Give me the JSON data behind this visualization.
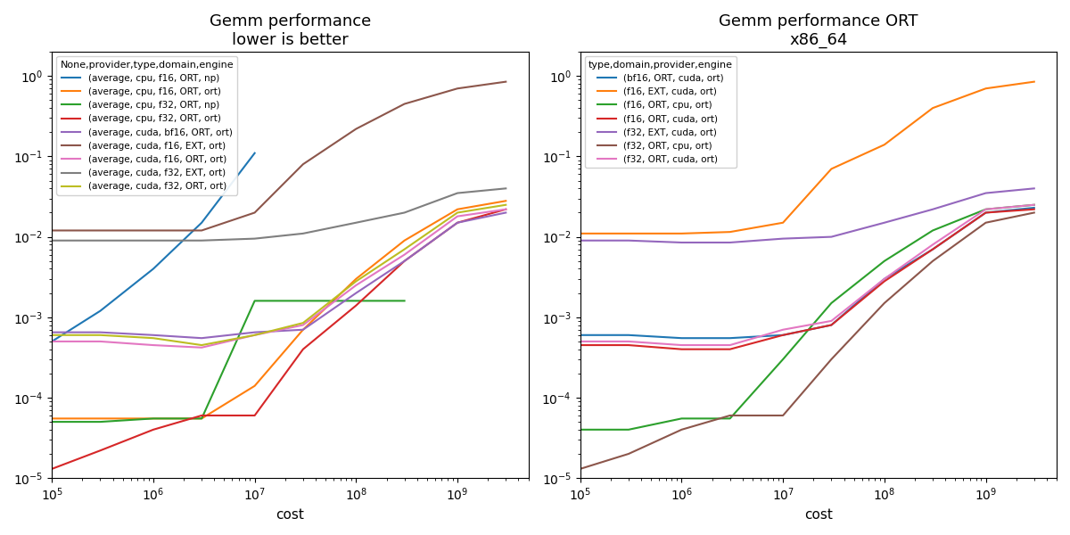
{
  "left_title": "Gemm performance\nlower is better",
  "right_title": "Gemm performance ORT\nx86_64",
  "xlabel": "cost",
  "left_legend_title": "None,provider,type,domain,engine",
  "right_legend_title": "type,domain,provider,engine",
  "left_series": [
    {
      "label": "(average, cpu, f16, ORT, np)",
      "color": "#1f77b4",
      "x": [
        100000.0,
        300000.0,
        1000000.0,
        3000000.0,
        10000000.0
      ],
      "y": [
        0.0005,
        0.0012,
        0.004,
        0.015,
        0.11
      ]
    },
    {
      "label": "(average, cpu, f16, ORT, ort)",
      "color": "#ff7f0e",
      "x": [
        100000.0,
        300000.0,
        1000000.0,
        3000000.0,
        10000000.0,
        30000000.0,
        100000000.0,
        300000000.0,
        1000000000.0,
        3000000000.0
      ],
      "y": [
        5.5e-05,
        5.5e-05,
        5.5e-05,
        5.5e-05,
        0.00014,
        0.0007,
        0.003,
        0.009,
        0.022,
        0.028
      ]
    },
    {
      "label": "(average, cpu, f32, ORT, np)",
      "color": "#2ca02c",
      "x": [
        100000.0,
        300000.0,
        1000000.0,
        3000000.0,
        10000000.0,
        30000000.0,
        100000000.0,
        300000000.0
      ],
      "y": [
        5e-05,
        5e-05,
        5.5e-05,
        5.5e-05,
        0.0016,
        0.0016,
        0.0016,
        0.0016
      ]
    },
    {
      "label": "(average, cpu, f32, ORT, ort)",
      "color": "#d62728",
      "x": [
        100000.0,
        300000.0,
        1000000.0,
        3000000.0,
        10000000.0,
        30000000.0,
        100000000.0,
        300000000.0,
        1000000000.0,
        3000000000.0
      ],
      "y": [
        1.3e-05,
        2.2e-05,
        4e-05,
        6e-05,
        6e-05,
        0.0004,
        0.0014,
        0.005,
        0.015,
        0.022
      ]
    },
    {
      "label": "(average, cuda, bf16, ORT, ort)",
      "color": "#9467bd",
      "x": [
        100000.0,
        300000.0,
        1000000.0,
        3000000.0,
        10000000.0,
        30000000.0,
        100000000.0,
        300000000.0,
        1000000000.0,
        3000000000.0
      ],
      "y": [
        0.00065,
        0.00065,
        0.0006,
        0.00055,
        0.00065,
        0.0007,
        0.002,
        0.005,
        0.015,
        0.02
      ]
    },
    {
      "label": "(average, cuda, f16, EXT, ort)",
      "color": "#8c564b",
      "x": [
        100000.0,
        300000.0,
        1000000.0,
        3000000.0,
        10000000.0,
        30000000.0,
        100000000.0,
        300000000.0,
        1000000000.0,
        3000000000.0
      ],
      "y": [
        0.012,
        0.012,
        0.012,
        0.012,
        0.02,
        0.08,
        0.22,
        0.45,
        0.7,
        0.85
      ]
    },
    {
      "label": "(average, cuda, f16, ORT, ort)",
      "color": "#e377c2",
      "x": [
        100000.0,
        300000.0,
        1000000.0,
        3000000.0,
        10000000.0,
        30000000.0,
        100000000.0,
        300000000.0,
        1000000000.0,
        3000000000.0
      ],
      "y": [
        0.0005,
        0.0005,
        0.00045,
        0.00042,
        0.0006,
        0.0008,
        0.0025,
        0.006,
        0.018,
        0.022
      ]
    },
    {
      "label": "(average, cuda, f32, EXT, ort)",
      "color": "#7f7f7f",
      "x": [
        100000.0,
        300000.0,
        1000000.0,
        3000000.0,
        10000000.0,
        30000000.0,
        100000000.0,
        300000000.0,
        1000000000.0,
        3000000000.0
      ],
      "y": [
        0.009,
        0.009,
        0.009,
        0.009,
        0.0095,
        0.011,
        0.015,
        0.02,
        0.035,
        0.04
      ]
    },
    {
      "label": "(average, cuda, f32, ORT, ort)",
      "color": "#bcbd22",
      "x": [
        100000.0,
        300000.0,
        1000000.0,
        3000000.0,
        10000000.0,
        30000000.0,
        100000000.0,
        300000000.0,
        1000000000.0,
        3000000000.0
      ],
      "y": [
        0.0006,
        0.0006,
        0.00055,
        0.00045,
        0.0006,
        0.00085,
        0.0028,
        0.007,
        0.02,
        0.025
      ]
    }
  ],
  "right_series": [
    {
      "label": "(bf16, ORT, cuda, ort)",
      "color": "#1f77b4",
      "x": [
        100000.0,
        300000.0,
        1000000.0,
        3000000.0,
        10000000.0,
        30000000.0,
        100000000.0,
        300000000.0,
        1000000000.0,
        3000000000.0
      ],
      "y": [
        0.0006,
        0.0006,
        0.00055,
        0.00055,
        0.0006,
        0.0008,
        0.003,
        0.007,
        0.02,
        0.023
      ]
    },
    {
      "label": "(f16, EXT, cuda, ort)",
      "color": "#ff7f0e",
      "x": [
        100000.0,
        300000.0,
        1000000.0,
        3000000.0,
        10000000.0,
        30000000.0,
        100000000.0,
        300000000.0,
        1000000000.0,
        3000000000.0
      ],
      "y": [
        0.011,
        0.011,
        0.011,
        0.0115,
        0.015,
        0.07,
        0.14,
        0.4,
        0.7,
        0.85
      ]
    },
    {
      "label": "(f16, ORT, cpu, ort)",
      "color": "#2ca02c",
      "x": [
        100000.0,
        300000.0,
        1000000.0,
        3000000.0,
        10000000.0,
        30000000.0,
        100000000.0,
        300000000.0,
        1000000000.0,
        3000000000.0
      ],
      "y": [
        4e-05,
        4e-05,
        5.5e-05,
        5.5e-05,
        0.0003,
        0.0015,
        0.005,
        0.012,
        0.022,
        0.025
      ]
    },
    {
      "label": "(f16, ORT, cuda, ort)",
      "color": "#d62728",
      "x": [
        100000.0,
        300000.0,
        1000000.0,
        3000000.0,
        10000000.0,
        30000000.0,
        100000000.0,
        300000000.0,
        1000000000.0,
        3000000000.0
      ],
      "y": [
        0.00045,
        0.00045,
        0.0004,
        0.0004,
        0.0006,
        0.0008,
        0.0028,
        0.007,
        0.02,
        0.022
      ]
    },
    {
      "label": "(f32, EXT, cuda, ort)",
      "color": "#9467bd",
      "x": [
        100000.0,
        300000.0,
        1000000.0,
        3000000.0,
        10000000.0,
        30000000.0,
        100000000.0,
        300000000.0,
        1000000000.0,
        3000000000.0
      ],
      "y": [
        0.009,
        0.009,
        0.0085,
        0.0085,
        0.0095,
        0.01,
        0.015,
        0.022,
        0.035,
        0.04
      ]
    },
    {
      "label": "(f32, ORT, cpu, ort)",
      "color": "#8c564b",
      "x": [
        100000.0,
        300000.0,
        1000000.0,
        3000000.0,
        10000000.0,
        30000000.0,
        100000000.0,
        300000000.0,
        1000000000.0,
        3000000000.0
      ],
      "y": [
        1.3e-05,
        2e-05,
        4e-05,
        6e-05,
        6e-05,
        0.0003,
        0.0015,
        0.005,
        0.015,
        0.02
      ]
    },
    {
      "label": "(f32, ORT, cuda, ort)",
      "color": "#e377c2",
      "x": [
        100000.0,
        300000.0,
        1000000.0,
        3000000.0,
        10000000.0,
        30000000.0,
        100000000.0,
        300000000.0,
        1000000000.0,
        3000000000.0
      ],
      "y": [
        0.0005,
        0.0005,
        0.00045,
        0.00045,
        0.0007,
        0.0009,
        0.003,
        0.008,
        0.022,
        0.025
      ]
    }
  ]
}
